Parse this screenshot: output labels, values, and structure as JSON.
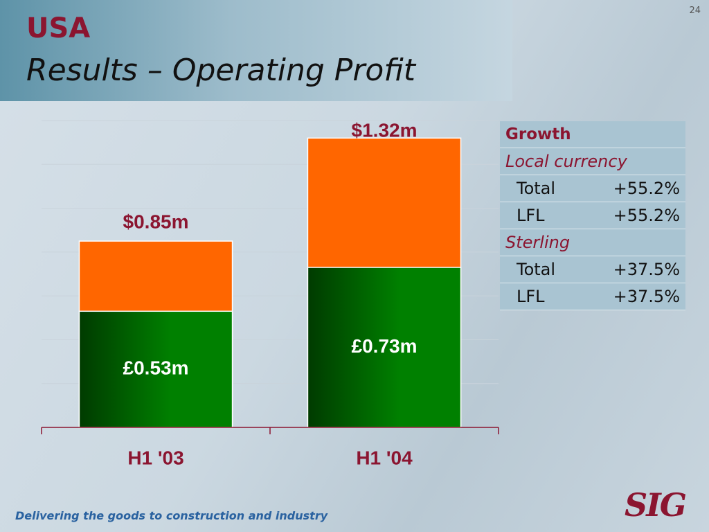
{
  "slide_number": "24",
  "header": {
    "title": "USA",
    "subtitle": "Results – Operating Profit"
  },
  "chart_data": {
    "type": "bar",
    "categories": [
      "H1 '03",
      "H1 '04"
    ],
    "series": [
      {
        "color": "#ff6600",
        "values": [
          0.85,
          1.32
        ],
        "value_labels": [
          "$0.85m",
          "$1.32m"
        ]
      },
      {
        "color": "#008000",
        "values": [
          0.53,
          0.73
        ],
        "value_labels": [
          "£0.53m",
          "£0.73m"
        ]
      }
    ],
    "ylim": [
      0,
      1.4
    ],
    "yticks": [
      0,
      0.2,
      0.4,
      0.6,
      0.8,
      1.0,
      1.2,
      1.4
    ],
    "grid": true
  },
  "growth_table": {
    "title": "Growth",
    "sections": [
      {
        "heading": "Local currency",
        "rows": [
          [
            "Total",
            "+55.2%"
          ],
          [
            "LFL",
            "+55.2%"
          ]
        ]
      },
      {
        "heading": "Sterling",
        "rows": [
          [
            "Total",
            "+37.5%"
          ],
          [
            "LFL",
            "+37.5%"
          ]
        ]
      }
    ]
  },
  "footer": {
    "tagline": "Delivering the goods to construction and industry",
    "logo": "SIG"
  }
}
